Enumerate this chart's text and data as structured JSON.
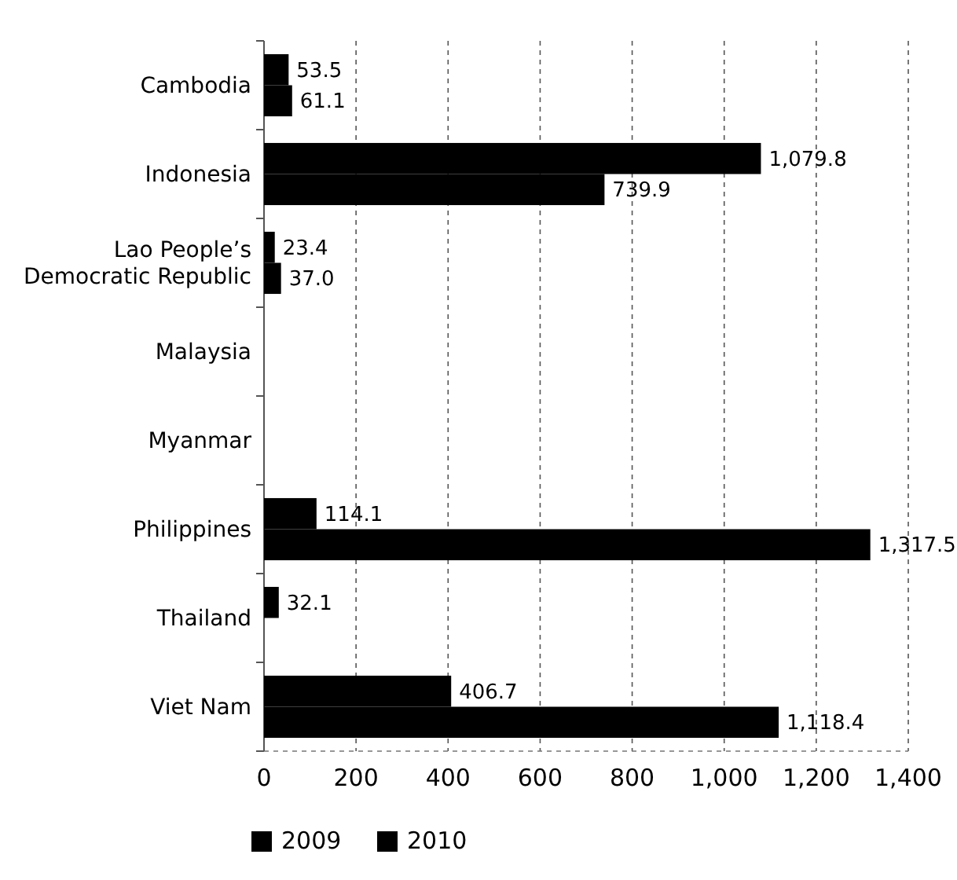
{
  "chart_data": {
    "type": "bar",
    "orientation": "horizontal",
    "categories": [
      "Cambodia",
      "Indonesia",
      "Lao People’s Democratic Republic",
      "Malaysia",
      "Myanmar",
      "Philippines",
      "Thailand",
      "Viet Nam"
    ],
    "series": [
      {
        "name": "2009",
        "color": "#000000",
        "values": [
          53.5,
          1079.8,
          23.4,
          null,
          null,
          114.1,
          32.1,
          406.7
        ],
        "value_labels": [
          "53.5",
          "1,079.8",
          "23.4",
          null,
          null,
          "114.1",
          "32.1",
          "406.7"
        ]
      },
      {
        "name": "2010",
        "color": "#000000",
        "values": [
          61.1,
          739.9,
          37.0,
          null,
          null,
          1317.5,
          null,
          1118.4
        ],
        "value_labels": [
          "61.1",
          "739.9",
          "37.0",
          null,
          null,
          "1,317.5",
          null,
          "1,118.4"
        ]
      }
    ],
    "xlim": [
      0,
      1400
    ],
    "xticks": [
      0,
      200,
      400,
      600,
      800,
      {
        "value": 1000,
        "label": "1,000"
      },
      {
        "value": 1200,
        "label": "1,200"
      },
      {
        "value": 1400,
        "label": "1,400"
      }
    ],
    "grid": "x",
    "legend": "bottom"
  }
}
